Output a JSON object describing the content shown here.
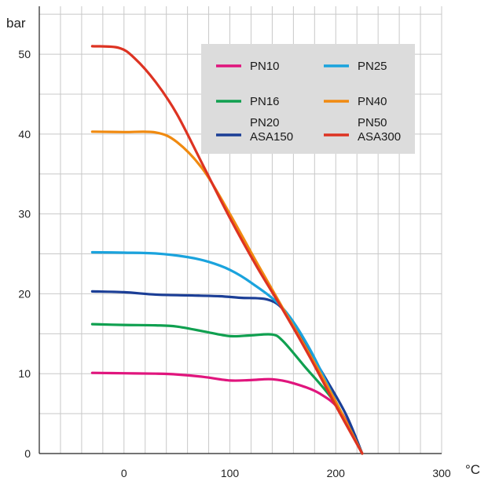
{
  "chart_data": {
    "type": "line",
    "title": "",
    "xlabel": "°C",
    "ylabel": "bar",
    "xlim": [
      -80,
      300
    ],
    "ylim": [
      0,
      56
    ],
    "x_ticks": [
      0,
      100,
      200,
      300
    ],
    "y_ticks": [
      0,
      10,
      20,
      30,
      40,
      50
    ],
    "grid": true,
    "legend_position": "top-right",
    "series": [
      {
        "name": "PN10",
        "color": "#e0157d",
        "x": [
          -30,
          0,
          30,
          50,
          75,
          100,
          120,
          140,
          160,
          185,
          205,
          225
        ],
        "y": [
          10.1,
          10.05,
          10.0,
          9.9,
          9.6,
          9.15,
          9.2,
          9.3,
          8.8,
          7.5,
          5.2,
          0
        ]
      },
      {
        "name": "PN16",
        "color": "#10a050",
        "x": [
          -30,
          0,
          30,
          50,
          75,
          100,
          120,
          140,
          150,
          170,
          200,
          225
        ],
        "y": [
          16.2,
          16.1,
          16.05,
          15.9,
          15.3,
          14.7,
          14.8,
          14.9,
          14.1,
          11.0,
          6.2,
          0
        ]
      },
      {
        "name": "PN20 ASA150",
        "color": "#1b3e96",
        "x": [
          -30,
          0,
          30,
          60,
          90,
          110,
          135,
          150,
          165,
          190,
          210,
          225
        ],
        "y": [
          20.3,
          20.2,
          19.9,
          19.8,
          19.7,
          19.5,
          19.3,
          18.1,
          15.0,
          9.5,
          4.8,
          0
        ]
      },
      {
        "name": "PN25",
        "color": "#1aa3dd",
        "x": [
          -30,
          0,
          30,
          60,
          80,
          100,
          120,
          150,
          175,
          200,
          225
        ],
        "y": [
          25.2,
          25.15,
          25.05,
          24.6,
          24.0,
          23.0,
          21.4,
          18.2,
          13.2,
          6.5,
          0
        ]
      },
      {
        "name": "PN40",
        "color": "#f08a10",
        "x": [
          -30,
          0,
          30,
          50,
          75,
          100,
          125,
          150,
          175,
          200,
          225
        ],
        "y": [
          40.3,
          40.25,
          40.2,
          39.0,
          35.5,
          30.0,
          24.0,
          18.2,
          12.5,
          6.5,
          0
        ]
      },
      {
        "name": "PN50 ASA300",
        "color": "#dd3322",
        "x": [
          -30,
          -5,
          10,
          30,
          50,
          75,
          100,
          125,
          150,
          175,
          200,
          225
        ],
        "y": [
          51.0,
          50.8,
          49.5,
          46.5,
          42.5,
          36.0,
          29.5,
          23.5,
          18.0,
          12.2,
          6.0,
          0
        ]
      }
    ]
  },
  "legend": {
    "columns": [
      [
        {
          "series": 0,
          "lines": [
            "PN10"
          ]
        },
        {
          "series": 1,
          "lines": [
            "PN16"
          ]
        },
        {
          "series": 2,
          "lines": [
            "PN20",
            "ASA150"
          ]
        }
      ],
      [
        {
          "series": 3,
          "lines": [
            "PN25"
          ]
        },
        {
          "series": 4,
          "lines": [
            "PN40"
          ]
        },
        {
          "series": 5,
          "lines": [
            "PN50",
            "ASA300"
          ]
        }
      ]
    ],
    "background": "#dcdcdc"
  }
}
